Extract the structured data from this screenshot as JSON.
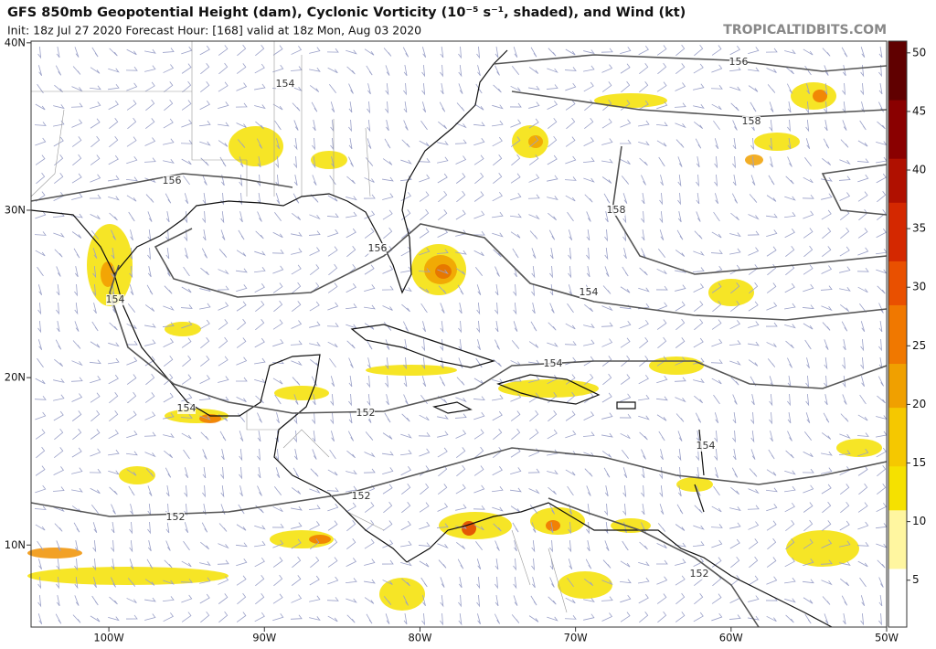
{
  "header": {
    "title": "GFS 850mb Geopotential Height (dam), Cyclonic Vorticity (10⁻⁵ s⁻¹, shaded), and Wind (kt)",
    "subtitle": "Init: 18z Jul 27 2020   Forecast Hour: [168]   valid at 18z Mon, Aug 03 2020",
    "site": "TROPICALTIDBITS.COM"
  },
  "map": {
    "lonlim": [
      -105,
      -50
    ],
    "latlim": [
      5.1,
      40.1
    ],
    "lon_ticks": [
      {
        "value": -100,
        "label": "100W"
      },
      {
        "value": -90,
        "label": "90W"
      },
      {
        "value": -80,
        "label": "80W"
      },
      {
        "value": -70,
        "label": "70W"
      },
      {
        "value": -60,
        "label": "60W"
      },
      {
        "value": -50,
        "label": "50W"
      }
    ],
    "lat_ticks": [
      {
        "value": 40,
        "label": "40N"
      },
      {
        "value": 30,
        "label": "30N"
      },
      {
        "value": 20,
        "label": "20N"
      },
      {
        "value": 10,
        "label": "10N"
      }
    ],
    "contour_labels": [
      "154",
      "156",
      "158",
      "156",
      "158",
      "156",
      "154",
      "154",
      "154",
      "154",
      "152",
      "152",
      "152",
      "154",
      "152"
    ]
  },
  "colorbar": {
    "range": [
      1,
      51
    ],
    "ticks": [
      5,
      10,
      15,
      20,
      25,
      30,
      35,
      40,
      45,
      50
    ]
  }
}
